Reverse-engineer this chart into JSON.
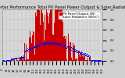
{
  "title": "Solar PV/Inverter Performance Total PV Panel Power Output & Solar Radiation",
  "bg_color": "#d0d0d0",
  "plot_bg_color": "#d8d8d8",
  "bar_color": "#cc0000",
  "scatter_color": "#0000ee",
  "grid_color": "#aaaaaa",
  "num_points": 365,
  "ylim": [
    0,
    1.0
  ],
  "legend_pv": "PV Panel Output (W)",
  "legend_solar": "Solar Radiation (W/m²)",
  "title_fontsize": 3.8,
  "tick_fontsize": 2.5,
  "legend_fontsize": 3.0,
  "ytick_labels": [
    "0.0",
    "0.2",
    "0.4",
    "0.6",
    "0.8",
    "1.0"
  ],
  "ytick_values": [
    0.0,
    0.2,
    0.4,
    0.6,
    0.8,
    1.0
  ]
}
